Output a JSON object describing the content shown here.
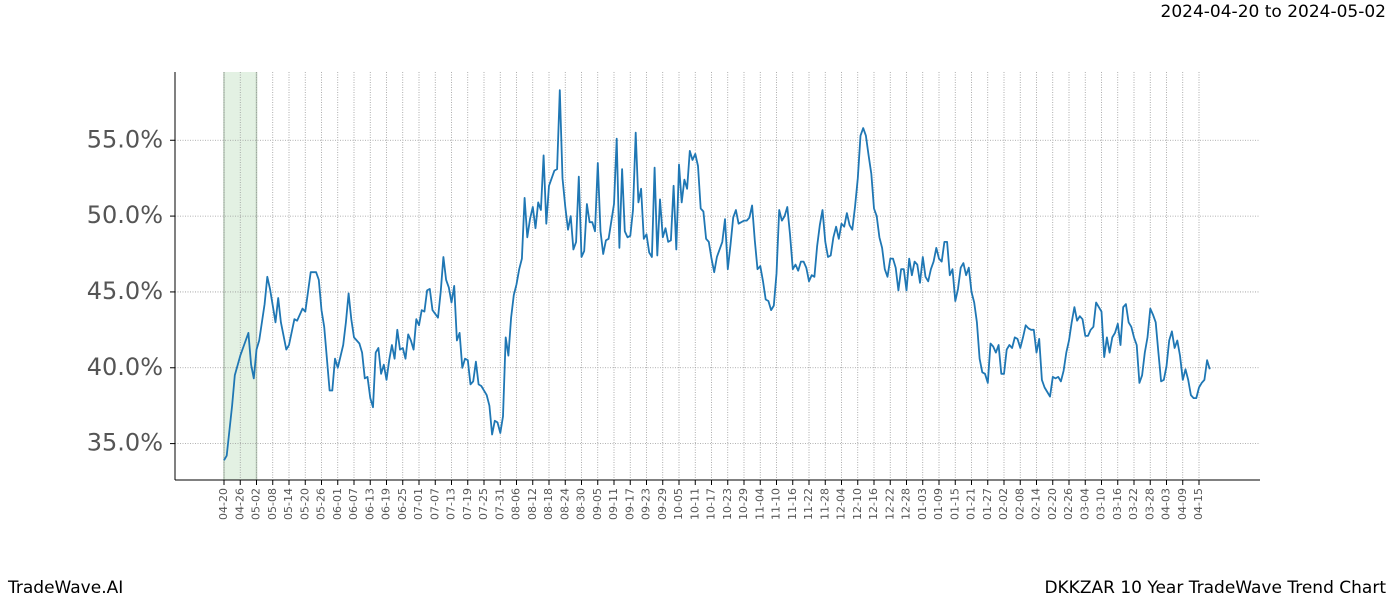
{
  "chart_data": {
    "type": "line",
    "title": "2024-04-20 to 2024-05-02",
    "footer_left": "TradeWave.AI",
    "footer_right": "DKKZAR 10 Year TradeWave Trend Chart",
    "highlight": [
      "04-20",
      "05-02"
    ],
    "color": "#1f77b4",
    "grid": true,
    "ylim": [
      32.6,
      59.5
    ],
    "yticks": [
      {
        "value": 35,
        "label": "35.0%"
      },
      {
        "value": 40,
        "label": "40.0%"
      },
      {
        "value": 45,
        "label": "45.0%"
      },
      {
        "value": 50,
        "label": "50.0%"
      },
      {
        "value": 55,
        "label": "55.0%"
      }
    ],
    "xticks": [
      "04-20",
      "04-26",
      "05-02",
      "05-08",
      "05-14",
      "05-20",
      "05-26",
      "06-01",
      "06-07",
      "06-13",
      "06-19",
      "06-25",
      "07-01",
      "07-07",
      "07-13",
      "07-19",
      "07-25",
      "07-31",
      "08-06",
      "08-12",
      "08-18",
      "08-24",
      "08-30",
      "09-05",
      "09-11",
      "09-17",
      "09-23",
      "09-29",
      "10-05",
      "10-11",
      "10-17",
      "10-23",
      "10-29",
      "11-04",
      "11-10",
      "11-16",
      "11-22",
      "11-28",
      "12-04",
      "12-10",
      "12-16",
      "12-22",
      "12-28",
      "01-03",
      "01-09",
      "01-15",
      "01-21",
      "01-27",
      "02-02",
      "02-08",
      "02-14",
      "02-20",
      "02-26",
      "03-04",
      "03-10",
      "03-16",
      "03-22",
      "03-28",
      "04-03",
      "04-09",
      "04-15"
    ],
    "x": [
      "04-20",
      "04-21",
      "04-23",
      "04-24",
      "04-26",
      "04-28",
      "04-29",
      "04-30",
      "05-01",
      "05-02",
      "05-03",
      "05-05",
      "05-06",
      "05-07",
      "05-09",
      "05-10",
      "05-11",
      "05-13",
      "05-14",
      "05-16",
      "05-17",
      "05-19",
      "05-20",
      "05-21",
      "05-22",
      "05-24",
      "05-25",
      "05-26",
      "05-27",
      "05-29",
      "05-30",
      "05-31",
      "06-01",
      "06-03",
      "06-04",
      "06-05",
      "06-06",
      "06-07",
      "06-09",
      "06-10",
      "06-11",
      "06-12",
      "06-13",
      "06-14",
      "06-15",
      "06-16",
      "06-17",
      "06-18",
      "06-19",
      "06-20",
      "06-21",
      "06-22",
      "06-23",
      "06-24",
      "06-25",
      "06-26",
      "06-27",
      "06-28",
      "06-29",
      "06-30",
      "07-01",
      "07-02",
      "07-03",
      "07-04",
      "07-05",
      "07-06",
      "07-08",
      "07-09",
      "07-10",
      "07-11",
      "07-12",
      "07-13",
      "07-14",
      "07-15",
      "07-16",
      "07-17",
      "07-18",
      "07-19",
      "07-20",
      "07-21",
      "07-22",
      "07-23",
      "07-24",
      "07-26",
      "07-27",
      "07-28",
      "07-29",
      "07-30",
      "07-31",
      "08-01",
      "08-02",
      "08-03",
      "08-04",
      "08-05",
      "08-06",
      "08-07",
      "08-08",
      "08-09",
      "08-10",
      "08-11",
      "08-12",
      "08-13",
      "08-14",
      "08-15",
      "08-16",
      "08-17",
      "08-18",
      "08-19",
      "08-20",
      "08-21",
      "08-22",
      "08-23",
      "08-24",
      "08-25",
      "08-26",
      "08-27",
      "08-28",
      "08-29",
      "08-30",
      "08-31",
      "09-01",
      "09-02",
      "09-03",
      "09-04",
      "09-05",
      "09-06",
      "09-07",
      "09-08",
      "09-09",
      "09-11",
      "09-12",
      "09-13",
      "09-14",
      "09-15",
      "09-16",
      "09-17",
      "09-18",
      "09-19",
      "09-20",
      "09-21",
      "09-22",
      "09-23",
      "09-24",
      "09-25",
      "09-26",
      "09-27",
      "09-28",
      "09-29",
      "09-30",
      "10-01",
      "10-02",
      "10-03",
      "10-04",
      "10-05",
      "10-06",
      "10-07",
      "10-08",
      "10-09",
      "10-10",
      "10-11",
      "10-12",
      "10-13",
      "10-14",
      "10-15",
      "10-16",
      "10-17",
      "10-18",
      "10-19",
      "10-21",
      "10-22",
      "10-23",
      "10-24",
      "10-25",
      "10-26",
      "10-27",
      "10-29",
      "10-30",
      "10-31",
      "11-01",
      "11-02",
      "11-03",
      "11-04",
      "11-05",
      "11-06",
      "11-07",
      "11-08",
      "11-09",
      "11-10",
      "11-11",
      "11-12",
      "11-13",
      "11-14",
      "11-15",
      "11-16",
      "11-17",
      "11-18",
      "11-19",
      "11-20",
      "11-21",
      "11-22",
      "11-23",
      "11-24",
      "11-25",
      "11-26",
      "11-27",
      "11-28",
      "11-29",
      "11-30",
      "12-01",
      "12-02",
      "12-03",
      "12-04",
      "12-05",
      "12-06",
      "12-07",
      "12-08",
      "12-09",
      "12-10",
      "12-11",
      "12-12",
      "12-13",
      "12-14",
      "12-15",
      "12-16",
      "12-17",
      "12-18",
      "12-19",
      "12-20",
      "12-21",
      "12-22",
      "12-23",
      "12-24",
      "12-25",
      "12-26",
      "12-27",
      "12-28",
      "12-29",
      "12-30",
      "12-31",
      "01-01",
      "01-02",
      "01-03",
      "01-04",
      "01-05",
      "01-06",
      "01-07",
      "01-08",
      "01-09",
      "01-10",
      "01-11",
      "01-12",
      "01-13",
      "01-14",
      "01-15",
      "01-16",
      "01-17",
      "01-18",
      "01-19",
      "01-20",
      "01-21",
      "01-22",
      "01-23",
      "01-24",
      "01-25",
      "01-26",
      "01-27",
      "01-28",
      "01-29",
      "01-30",
      "01-31",
      "02-01",
      "02-02",
      "02-03",
      "02-04",
      "02-05",
      "02-06",
      "02-07",
      "02-08",
      "02-09",
      "02-10",
      "02-11",
      "02-12",
      "02-13",
      "02-14",
      "02-15",
      "02-16",
      "02-17",
      "02-18",
      "02-19",
      "02-20",
      "02-21",
      "02-22",
      "02-23",
      "02-24",
      "02-25",
      "02-26",
      "02-27",
      "02-28",
      "03-01",
      "03-02",
      "03-03",
      "03-04",
      "03-05",
      "03-06",
      "03-07",
      "03-08",
      "03-09",
      "03-10",
      "03-11",
      "03-12",
      "03-13",
      "03-14",
      "03-15",
      "03-16",
      "03-17",
      "03-18",
      "03-19",
      "03-20",
      "03-21",
      "03-22",
      "03-23",
      "03-24",
      "03-25",
      "03-26",
      "03-27",
      "03-28",
      "03-29",
      "03-30",
      "03-31",
      "04-01",
      "04-02",
      "04-03",
      "04-04",
      "04-05",
      "04-06",
      "04-07",
      "04-08",
      "04-09",
      "04-10",
      "04-11",
      "04-12",
      "04-13",
      "04-14",
      "04-15",
      "04-16",
      "04-17",
      "04-18",
      "04-19"
    ],
    "values": [
      33.9,
      34.2,
      37.5,
      39.5,
      40.8,
      41.8,
      42.3,
      40.2,
      39.3,
      41.2,
      41.8,
      44.2,
      46.0,
      45.2,
      43.0,
      44.6,
      43.0,
      41.2,
      41.5,
      43.2,
      43.1,
      43.9,
      43.7,
      45.0,
      46.3,
      46.3,
      45.8,
      43.8,
      42.7,
      38.5,
      38.5,
      40.6,
      40.0,
      41.5,
      43.0,
      44.9,
      43.2,
      42.0,
      41.6,
      41.0,
      39.3,
      39.4,
      38.0,
      37.4,
      41.0,
      41.3,
      39.6,
      40.2,
      39.2,
      40.5,
      41.5,
      40.6,
      42.5,
      41.2,
      41.3,
      40.6,
      42.2,
      41.8,
      41.2,
      43.2,
      42.8,
      43.8,
      43.7,
      45.1,
      45.2,
      43.8,
      43.3,
      45.0,
      47.3,
      45.8,
      45.3,
      44.3,
      45.4,
      41.8,
      42.3,
      40.0,
      40.6,
      40.5,
      38.9,
      39.1,
      40.4,
      38.9,
      38.8,
      38.2,
      37.5,
      35.6,
      36.5,
      36.4,
      35.7,
      36.8,
      42.0,
      40.8,
      43.3,
      44.8,
      45.5,
      46.5,
      47.2,
      51.2,
      48.6,
      49.8,
      50.6,
      49.2,
      50.9,
      50.4,
      54.0,
      49.5,
      52.0,
      52.5,
      53.0,
      53.1,
      58.3,
      52.5,
      50.6,
      49.1,
      50.0,
      47.8,
      48.3,
      52.6,
      47.3,
      47.7,
      50.8,
      49.6,
      49.6,
      49.0,
      53.5,
      49.0,
      47.5,
      48.4,
      48.5,
      50.8,
      55.1,
      47.9,
      53.1,
      49.0,
      48.6,
      48.7,
      50.4,
      55.5,
      50.9,
      51.8,
      48.5,
      48.8,
      47.6,
      47.3,
      53.2,
      47.4,
      51.1,
      48.6,
      49.2,
      48.3,
      48.4,
      52.0,
      47.8,
      53.4,
      50.9,
      52.4,
      51.8,
      54.3,
      53.7,
      54.1,
      53.3,
      50.5,
      50.3,
      48.5,
      48.3,
      47.2,
      46.3,
      47.3,
      48.3,
      49.8,
      46.5,
      48.1,
      49.9,
      50.4,
      49.5,
      49.7,
      49.7,
      49.9,
      50.7,
      48.4,
      46.5,
      46.7,
      45.7,
      44.5,
      44.4,
      43.8,
      44.1,
      46.2,
      50.4,
      49.7,
      50.0,
      50.6,
      48.8,
      46.5,
      46.8,
      46.4,
      47.0,
      47.0,
      46.6,
      45.7,
      46.1,
      46.0,
      48.0,
      49.4,
      50.4,
      48.3,
      47.3,
      47.4,
      48.6,
      49.3,
      48.5,
      49.5,
      49.3,
      50.2,
      49.4,
      49.1,
      50.6,
      52.5,
      55.3,
      55.8,
      55.3,
      54.0,
      52.8,
      50.5,
      50.0,
      48.6,
      47.9,
      46.5,
      46.0,
      47.2,
      47.2,
      46.6,
      45.1,
      46.5,
      46.5,
      45.1,
      47.2,
      46.1,
      47.0,
      46.8,
      45.6,
      47.3,
      46.0,
      45.7,
      46.5,
      47.0,
      47.9,
      47.2,
      47.0,
      48.3,
      48.3,
      46.1,
      46.5,
      44.4,
      45.2,
      46.6,
      46.9,
      46.1,
      46.6,
      45.0,
      44.3,
      43.0,
      40.6,
      39.7,
      39.6,
      39.0,
      41.6,
      41.4,
      41.0,
      41.5,
      39.6,
      39.6,
      41.2,
      41.5,
      41.3,
      42.0,
      41.9,
      41.3,
      42.0,
      42.8,
      42.6,
      42.5,
      42.5,
      41.0,
      41.9,
      39.2,
      38.7,
      38.4,
      38.1,
      39.4,
      39.3,
      39.4,
      39.1,
      39.8,
      41.0,
      41.8,
      43.0,
      44.0,
      43.1,
      43.4,
      43.2,
      42.1,
      42.1,
      42.5,
      42.7,
      44.3,
      44.0,
      43.7,
      40.7,
      42.0,
      41.0,
      42.0,
      42.3,
      42.9,
      41.5,
      44.0,
      44.2,
      43.0,
      42.7,
      42.0,
      41.5,
      39.0,
      39.5,
      41.0,
      42.0,
      43.9,
      43.5,
      43.0,
      41.0,
      39.1,
      39.2,
      40.1,
      41.8,
      42.4,
      41.3,
      41.8,
      40.8,
      39.2,
      39.9,
      39.2,
      38.2,
      38.0,
      38.0,
      38.7,
      39.0,
      39.2,
      40.5,
      39.9
    ]
  }
}
